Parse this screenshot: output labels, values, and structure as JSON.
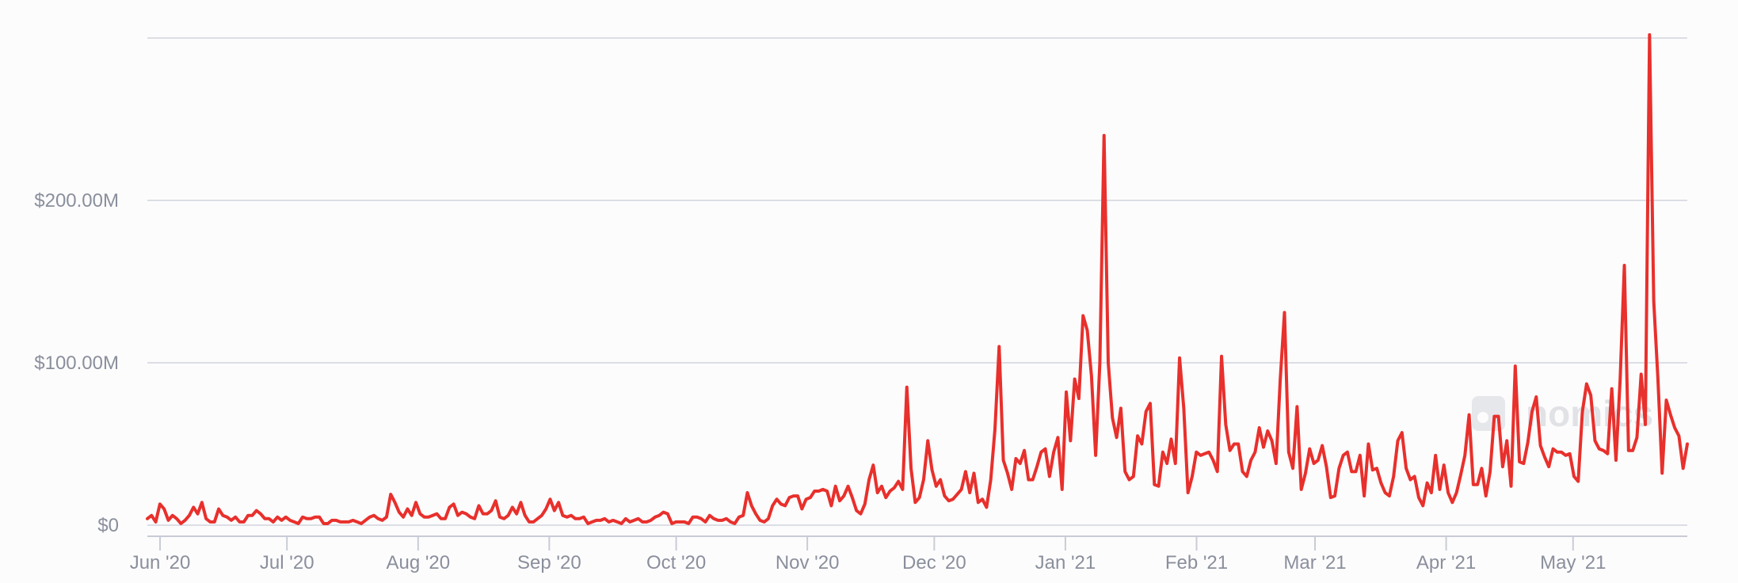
{
  "watermark": {
    "text": "nomics"
  },
  "chart_data": {
    "type": "line",
    "title": "",
    "xlabel": "",
    "ylabel": "",
    "ylim": [
      0,
      300
    ],
    "y_unit": "millions USD",
    "grid": true,
    "y_ticks": [
      {
        "value": 0,
        "label": "$0"
      },
      {
        "value": 100,
        "label": "$100.00M"
      },
      {
        "value": 200,
        "label": "$200.00M"
      },
      {
        "value": 300,
        "label": ""
      }
    ],
    "x_ticks": [
      {
        "date": "2020-06-01",
        "label": "Jun '20"
      },
      {
        "date": "2020-07-01",
        "label": "Jul '20"
      },
      {
        "date": "2020-08-01",
        "label": "Aug '20"
      },
      {
        "date": "2020-09-01",
        "label": "Sep '20"
      },
      {
        "date": "2020-10-01",
        "label": "Oct '20"
      },
      {
        "date": "2020-11-01",
        "label": "Nov '20"
      },
      {
        "date": "2020-12-01",
        "label": "Dec '20"
      },
      {
        "date": "2021-01-01",
        "label": "Jan '21"
      },
      {
        "date": "2021-02-01",
        "label": "Feb '21"
      },
      {
        "date": "2021-03-01",
        "label": "Mar '21"
      },
      {
        "date": "2021-04-01",
        "label": "Apr '21"
      },
      {
        "date": "2021-05-01",
        "label": "May '21"
      }
    ],
    "colors": {
      "line": "#e8302c",
      "grid": "#dcdee5",
      "axis": "#c9ccd6"
    },
    "series": [
      {
        "x_start": "2020-05-29",
        "x_end": "2021-05-28",
        "values": [
          4,
          6,
          2,
          13,
          10,
          3,
          6,
          4,
          1,
          3,
          6,
          11,
          7,
          14,
          4,
          2,
          2,
          10,
          6,
          5,
          3,
          5,
          2,
          2,
          6,
          6,
          9,
          7,
          4,
          4,
          2,
          5,
          3,
          5,
          3,
          2,
          1,
          5,
          4,
          4,
          5,
          5,
          1,
          1,
          3,
          3,
          2,
          2,
          2,
          3,
          2,
          1,
          3,
          5,
          6,
          4,
          3,
          5,
          19,
          14,
          8,
          5,
          10,
          6,
          14,
          7,
          5,
          5,
          6,
          7,
          4,
          4,
          11,
          13,
          6,
          8,
          7,
          5,
          4,
          12,
          7,
          7,
          9,
          15,
          5,
          4,
          6,
          11,
          7,
          14,
          6,
          2,
          2,
          4,
          6,
          10,
          16,
          9,
          14,
          6,
          5,
          6,
          4,
          4,
          5,
          1,
          2,
          3,
          3,
          4,
          2,
          3,
          2,
          1,
          4,
          2,
          3,
          4,
          2,
          2,
          3,
          5,
          6,
          8,
          7,
          1,
          2,
          2,
          2,
          1,
          5,
          5,
          4,
          2,
          6,
          4,
          3,
          3,
          4,
          2,
          1,
          5,
          6,
          20,
          12,
          7,
          3,
          2,
          4,
          12,
          16,
          13,
          12,
          17,
          18,
          18,
          10,
          16,
          17,
          21,
          21,
          22,
          21,
          12,
          24,
          15,
          18,
          24,
          17,
          9,
          7,
          13,
          28,
          37,
          20,
          24,
          17,
          21,
          23,
          27,
          22,
          85,
          35,
          14,
          17,
          28,
          52,
          34,
          24,
          28,
          18,
          15,
          16,
          19,
          22,
          33,
          20,
          32,
          14,
          16,
          11,
          28,
          59,
          110,
          40,
          32,
          22,
          41,
          38,
          46,
          28,
          28,
          36,
          45,
          47,
          30,
          45,
          54,
          22,
          82,
          52,
          90,
          78,
          129,
          120,
          92,
          43,
          100,
          240,
          100,
          66,
          54,
          72,
          33,
          28,
          30,
          55,
          50,
          70,
          75,
          25,
          24,
          45,
          38,
          53,
          38,
          103,
          72,
          20,
          30,
          45,
          43,
          44,
          45,
          40,
          33,
          104,
          62,
          46,
          50,
          50,
          33,
          30,
          40,
          45,
          60,
          48,
          58,
          52,
          38,
          90,
          131,
          45,
          35,
          73,
          22,
          32,
          47,
          38,
          40,
          49,
          36,
          17,
          18,
          35,
          43,
          45,
          33,
          33,
          43,
          18,
          50,
          34,
          35,
          26,
          20,
          18,
          30,
          52,
          57,
          35,
          28,
          30,
          17,
          12,
          26,
          20,
          43,
          22,
          37,
          20,
          14,
          20,
          31,
          43,
          68,
          25,
          25,
          35,
          18,
          33,
          67,
          67,
          36,
          52,
          24,
          98,
          39,
          38,
          51,
          70,
          79,
          49,
          42,
          36,
          47,
          45,
          45,
          43,
          44,
          30,
          27,
          70,
          87,
          80,
          52,
          47,
          46,
          44,
          84,
          40,
          90,
          160,
          46,
          46,
          54,
          93,
          62,
          302,
          138,
          90,
          32,
          77,
          68,
          60,
          55,
          35,
          50
        ]
      }
    ]
  }
}
